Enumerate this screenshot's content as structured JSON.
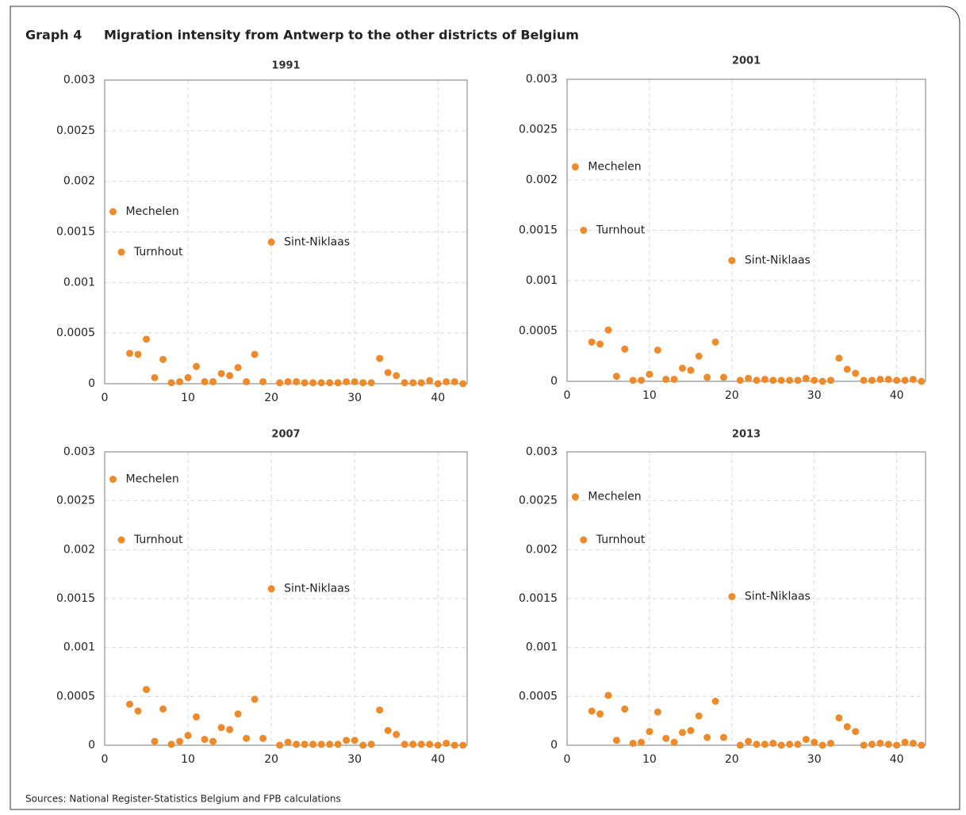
{
  "label": "Graph 4",
  "title": "Migration intensity from Antwerp to the other districts of Belgium",
  "source": "Sources: National Register-Statistics Belgium and FPB calculations",
  "chart_data": [
    {
      "type": "scatter",
      "title": "1991",
      "color": "#ef8a2a",
      "grid": true,
      "x": [
        1,
        2,
        3,
        4,
        5,
        6,
        7,
        8,
        9,
        10,
        11,
        12,
        13,
        14,
        15,
        16,
        17,
        18,
        19,
        20,
        21,
        22,
        23,
        24,
        25,
        26,
        27,
        28,
        29,
        30,
        31,
        32,
        33,
        34,
        35,
        36,
        37,
        38,
        39,
        40,
        41,
        42,
        43
      ],
      "values": [
        0.0017,
        0.0013,
        0.0003,
        0.00029,
        0.00044,
        6e-05,
        0.00024,
        1e-05,
        2e-05,
        6e-05,
        0.00017,
        2e-05,
        2e-05,
        0.0001,
        8e-05,
        0.00016,
        2e-05,
        0.00029,
        2e-05,
        0.0014,
        1e-05,
        2e-05,
        2e-05,
        1e-05,
        1e-05,
        1e-05,
        1e-05,
        1e-05,
        2e-05,
        2e-05,
        1e-05,
        1e-05,
        0.00025,
        0.00011,
        8e-05,
        1e-05,
        1e-05,
        1e-05,
        3e-05,
        0,
        2e-05,
        2e-05,
        0
      ],
      "annotations": [
        {
          "text": "Mechelen",
          "x": 1
        },
        {
          "text": "Turnhout",
          "x": 2
        },
        {
          "text": "Sint-Niklaas",
          "x": 20
        }
      ],
      "xlim": [
        0,
        43.5
      ],
      "xticks": [
        0,
        10,
        20,
        30,
        40
      ],
      "ylim": [
        0,
        0.003
      ],
      "yticks": [
        0,
        0.0005,
        0.001,
        0.0015,
        0.002,
        0.0025,
        0.003
      ]
    },
    {
      "type": "scatter",
      "title": "2001",
      "color": "#ef8a2a",
      "grid": true,
      "x": [
        1,
        2,
        3,
        4,
        5,
        6,
        7,
        8,
        9,
        10,
        11,
        12,
        13,
        14,
        15,
        16,
        17,
        18,
        19,
        20,
        21,
        22,
        23,
        24,
        25,
        26,
        27,
        28,
        29,
        30,
        31,
        32,
        33,
        34,
        35,
        36,
        37,
        38,
        39,
        40,
        41,
        42,
        43
      ],
      "values": [
        0.00213,
        0.0015,
        0.00039,
        0.00037,
        0.00051,
        5e-05,
        0.00032,
        1e-05,
        1e-05,
        7e-05,
        0.00031,
        2e-05,
        2e-05,
        0.00013,
        0.00011,
        0.00025,
        4e-05,
        0.00039,
        4e-05,
        0.0012,
        1e-05,
        3e-05,
        1e-05,
        2e-05,
        1e-05,
        1e-05,
        1e-05,
        1e-05,
        3e-05,
        1e-05,
        0,
        1e-05,
        0.00023,
        0.00012,
        8e-05,
        1e-05,
        1e-05,
        2e-05,
        2e-05,
        1e-05,
        1e-05,
        2e-05,
        0
      ],
      "annotations": [
        {
          "text": "Mechelen",
          "x": 1
        },
        {
          "text": "Turnhout",
          "x": 2
        },
        {
          "text": "Sint-Niklaas",
          "x": 20
        }
      ],
      "xlim": [
        0,
        43.5
      ],
      "xticks": [
        0,
        10,
        20,
        30,
        40
      ],
      "ylim": [
        0,
        0.003
      ],
      "yticks": [
        0,
        0.0005,
        0.001,
        0.0015,
        0.002,
        0.0025,
        0.003
      ]
    },
    {
      "type": "scatter",
      "title": "2007",
      "color": "#ef8a2a",
      "grid": true,
      "x": [
        1,
        2,
        3,
        4,
        5,
        6,
        7,
        8,
        9,
        10,
        11,
        12,
        13,
        14,
        15,
        16,
        17,
        18,
        19,
        20,
        21,
        22,
        23,
        24,
        25,
        26,
        27,
        28,
        29,
        30,
        31,
        32,
        33,
        34,
        35,
        36,
        37,
        38,
        39,
        40,
        41,
        42,
        43
      ],
      "values": [
        0.00272,
        0.0021,
        0.00042,
        0.00035,
        0.00057,
        4e-05,
        0.00037,
        1e-05,
        4e-05,
        0.0001,
        0.00029,
        6e-05,
        4e-05,
        0.00018,
        0.00016,
        0.00032,
        7e-05,
        0.00047,
        7e-05,
        0.0016,
        0,
        3e-05,
        1e-05,
        1e-05,
        1e-05,
        1e-05,
        1e-05,
        1e-05,
        5e-05,
        5e-05,
        0,
        1e-05,
        0.00036,
        0.00015,
        0.00011,
        1e-05,
        1e-05,
        1e-05,
        1e-05,
        0,
        2e-05,
        0,
        0
      ],
      "annotations": [
        {
          "text": "Mechelen",
          "x": 1
        },
        {
          "text": "Turnhout",
          "x": 2
        },
        {
          "text": "Sint-Niklaas",
          "x": 20
        }
      ],
      "xlim": [
        0,
        43.5
      ],
      "xticks": [
        0,
        10,
        20,
        30,
        40
      ],
      "ylim": [
        0,
        0.003
      ],
      "yticks": [
        0,
        0.0005,
        0.001,
        0.0015,
        0.002,
        0.0025,
        0.003
      ]
    },
    {
      "type": "scatter",
      "title": "2013",
      "color": "#ef8a2a",
      "grid": true,
      "x": [
        1,
        2,
        3,
        4,
        5,
        6,
        7,
        8,
        9,
        10,
        11,
        12,
        13,
        14,
        15,
        16,
        17,
        18,
        19,
        20,
        21,
        22,
        23,
        24,
        25,
        26,
        27,
        28,
        29,
        30,
        31,
        32,
        33,
        34,
        35,
        36,
        37,
        38,
        39,
        40,
        41,
        42,
        43
      ],
      "values": [
        0.00254,
        0.0021,
        0.00035,
        0.00032,
        0.00051,
        5e-05,
        0.00037,
        2e-05,
        3e-05,
        0.00014,
        0.00034,
        7e-05,
        3e-05,
        0.00013,
        0.00015,
        0.0003,
        8e-05,
        0.00045,
        8e-05,
        0.00152,
        0,
        4e-05,
        1e-05,
        1e-05,
        2e-05,
        0,
        1e-05,
        1e-05,
        6e-05,
        3e-05,
        0,
        2e-05,
        0.00028,
        0.00019,
        0.00014,
        0,
        1e-05,
        2e-05,
        1e-05,
        0,
        3e-05,
        2e-05,
        0
      ],
      "annotations": [
        {
          "text": "Mechelen",
          "x": 1
        },
        {
          "text": "Turnhout",
          "x": 2
        },
        {
          "text": "Sint-Niklaas",
          "x": 20
        }
      ],
      "xlim": [
        0,
        43.5
      ],
      "xticks": [
        0,
        10,
        20,
        30,
        40
      ],
      "ylim": [
        0,
        0.003
      ],
      "yticks": [
        0,
        0.0005,
        0.001,
        0.0015,
        0.002,
        0.0025,
        0.003
      ]
    }
  ]
}
